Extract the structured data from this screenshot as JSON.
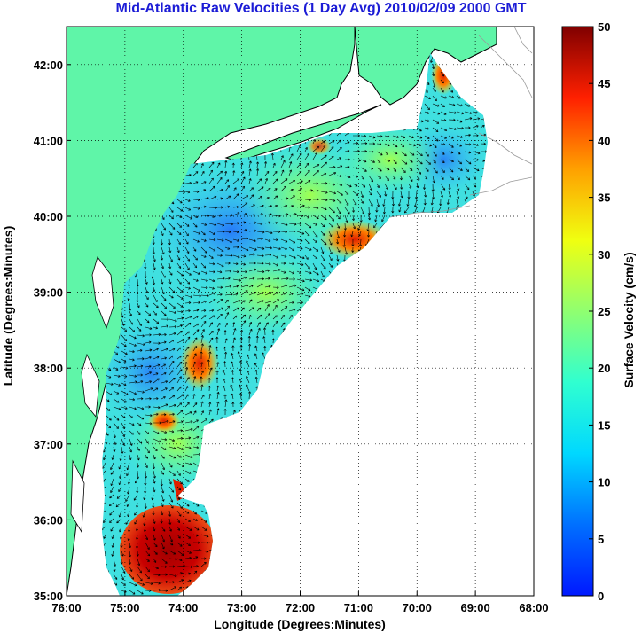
{
  "title": "Mid-Atlantic Raw Velocities (1 Day Avg) 2010/02/09 2000 GMT",
  "title_color": "#1c1cd6",
  "map": {
    "xlabel": "Longitude (Degrees:Minutes)",
    "ylabel": "Latitude (Degrees:Minutes)",
    "lon_range": [
      -76,
      -68
    ],
    "lat_range": [
      35,
      42.5
    ],
    "lon_ticks": [
      {
        "value": -76,
        "label": "76:00"
      },
      {
        "value": -75,
        "label": "75:00"
      },
      {
        "value": -74,
        "label": "74:00"
      },
      {
        "value": -73,
        "label": "73:00"
      },
      {
        "value": -72,
        "label": "72:00"
      },
      {
        "value": -71,
        "label": "71:00"
      },
      {
        "value": -70,
        "label": "70:00"
      },
      {
        "value": -69,
        "label": "69:00"
      },
      {
        "value": -68,
        "label": "68:00"
      }
    ],
    "lat_ticks": [
      {
        "value": 35,
        "label": "35:00"
      },
      {
        "value": 36,
        "label": "36:00"
      },
      {
        "value": 37,
        "label": "37:00"
      },
      {
        "value": 38,
        "label": "38:00"
      },
      {
        "value": 39,
        "label": "39:00"
      },
      {
        "value": 40,
        "label": "40:00"
      },
      {
        "value": 41,
        "label": "41:00"
      },
      {
        "value": 42,
        "label": "42:00"
      }
    ],
    "grid": true,
    "land_color": "#5ff5a8",
    "coast_color": "#000000",
    "bathymetry_color": "#9a9a9a"
  },
  "colorbar": {
    "label": "Surface Velocity (cm/s)",
    "range": [
      0,
      50
    ],
    "ticks": [
      {
        "value": 0,
        "label": "0"
      },
      {
        "value": 5,
        "label": "5"
      },
      {
        "value": 10,
        "label": "10"
      },
      {
        "value": 15,
        "label": "15"
      },
      {
        "value": 20,
        "label": "20"
      },
      {
        "value": 25,
        "label": "25"
      },
      {
        "value": 30,
        "label": "30"
      },
      {
        "value": 35,
        "label": "35"
      },
      {
        "value": 40,
        "label": "40"
      },
      {
        "value": 45,
        "label": "45"
      },
      {
        "value": 50,
        "label": "50"
      }
    ],
    "colormap": "jet"
  }
}
